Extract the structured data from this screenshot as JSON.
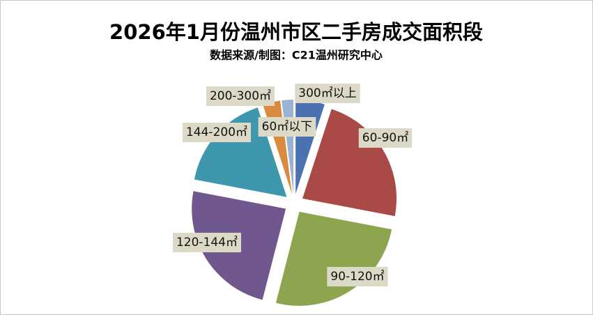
{
  "chart_data": {
    "type": "pie",
    "title": "2026年1月份温州市区二手房成交面积段",
    "subtitle": "数据来源/制图：C21温州研究中心",
    "categories": [
      "60㎡以下",
      "60-90㎡",
      "90-120㎡",
      "120-144㎡",
      "144-200㎡",
      "200-300㎡",
      "300㎡以上"
    ],
    "values": [
      5,
      23,
      26,
      24,
      17,
      3,
      2
    ],
    "colors": [
      "#4a72b0",
      "#a94a47",
      "#8ea54f",
      "#70588f",
      "#3e97ad",
      "#d98a3e",
      "#9bb2d5"
    ]
  }
}
